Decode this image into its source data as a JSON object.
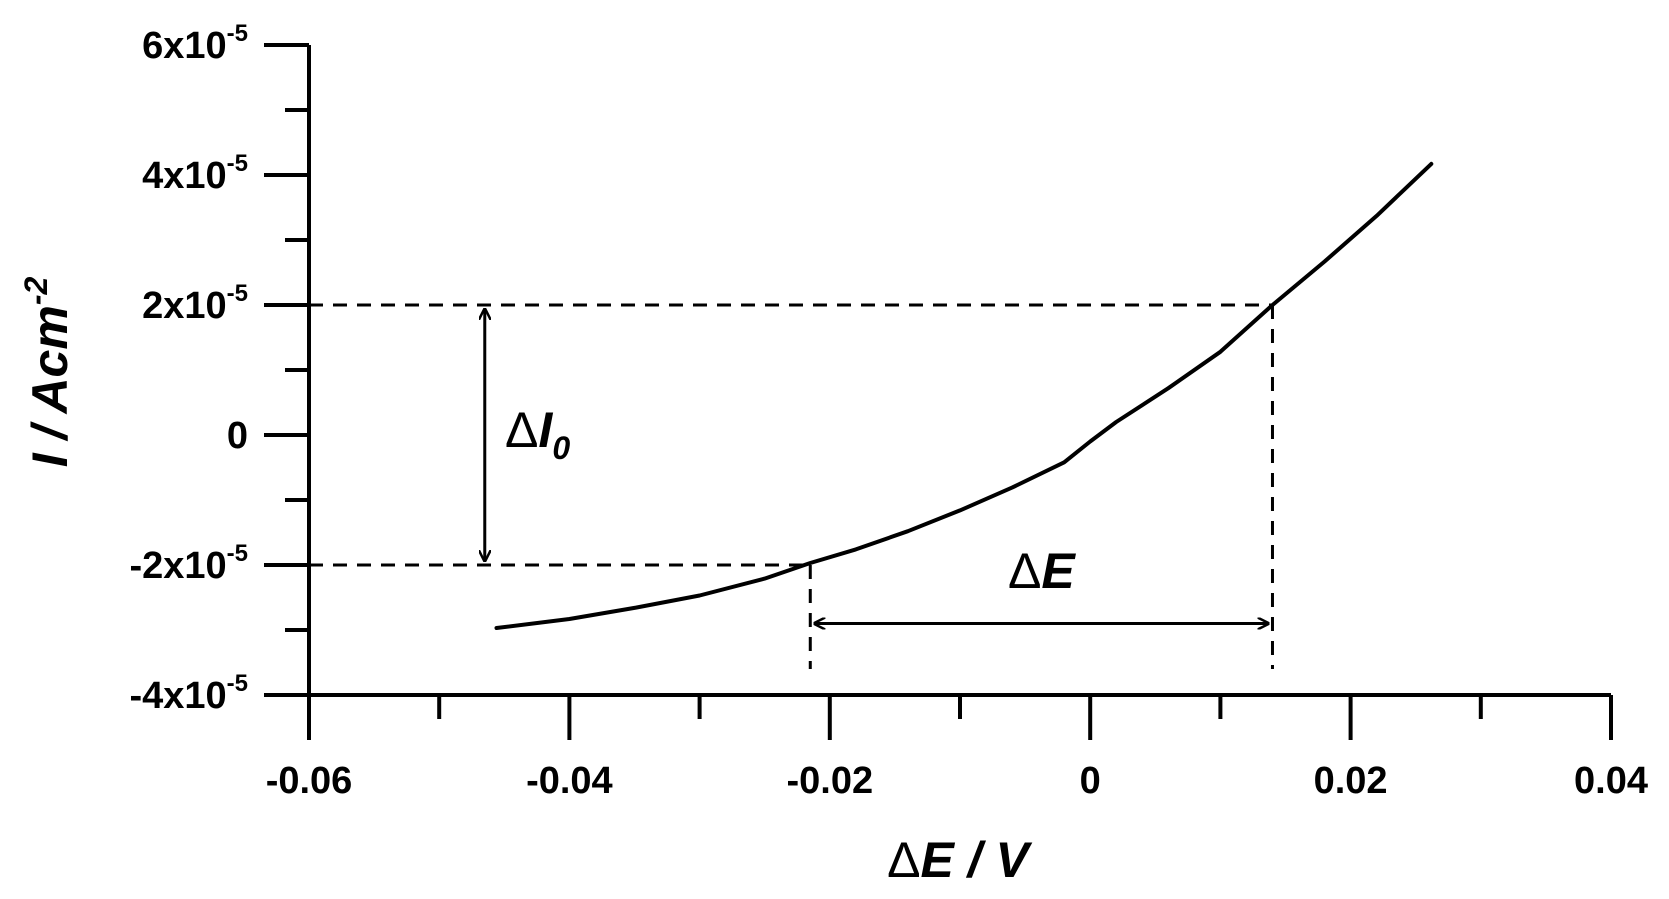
{
  "chart_data": {
    "type": "line",
    "xlabel": {
      "delta": "Δ",
      "var": "E",
      "rest": " / V"
    },
    "ylabel": {
      "var": "I",
      "mid": " / Acm",
      "sup": "-2"
    },
    "xlim": [
      -0.06,
      0.04
    ],
    "ylim": [
      -4e-05,
      6e-05
    ],
    "x_ticks": [
      {
        "value": -0.06,
        "label": "-0.06"
      },
      {
        "value": -0.04,
        "label": "-0.04"
      },
      {
        "value": -0.02,
        "label": "-0.02"
      },
      {
        "value": 0,
        "label": "0"
      },
      {
        "value": 0.02,
        "label": "0.02"
      },
      {
        "value": 0.04,
        "label": "0.04"
      }
    ],
    "x_minor_ticks": [
      -0.05,
      -0.03,
      -0.01,
      0.01,
      0.03
    ],
    "y_ticks": [
      {
        "value": 6e-05,
        "mant": "6x10",
        "exp": "-5"
      },
      {
        "value": 4e-05,
        "mant": "4x10",
        "exp": "-5"
      },
      {
        "value": 2e-05,
        "mant": "2x10",
        "exp": "-5"
      },
      {
        "value": 0,
        "mant": "0",
        "exp": ""
      },
      {
        "value": -2e-05,
        "mant": "-2x10",
        "exp": "-5"
      },
      {
        "value": -4e-05,
        "mant": "-4x10",
        "exp": "-5"
      }
    ],
    "y_minor_ticks": [
      5e-05,
      3e-05,
      1e-05,
      -1e-05,
      -3e-05
    ],
    "series": [
      {
        "color": "#000000",
        "points": [
          [
            -0.0456,
            -2.97e-05
          ],
          [
            -0.04,
            -2.83e-05
          ],
          [
            -0.035,
            -2.66e-05
          ],
          [
            -0.03,
            -2.47e-05
          ],
          [
            -0.025,
            -2.21e-05
          ],
          [
            -0.0215,
            -1.97e-05
          ],
          [
            -0.018,
            -1.76e-05
          ],
          [
            -0.014,
            -1.48e-05
          ],
          [
            -0.01,
            -1.16e-05
          ],
          [
            -0.006,
            -8.1e-06
          ],
          [
            -0.002,
            -4.2e-06
          ],
          [
            0.0,
            -1e-06
          ],
          [
            0.002,
            2e-06
          ],
          [
            0.006,
            7.2e-06
          ],
          [
            0.01,
            1.28e-05
          ],
          [
            0.014,
            2e-05
          ],
          [
            0.018,
            2.67e-05
          ],
          [
            0.022,
            3.37e-05
          ],
          [
            0.0262,
            4.17e-05
          ]
        ]
      }
    ],
    "annotations": {
      "delta_i0": {
        "delta": "Δ",
        "var": "I",
        "sub": "0",
        "x": -0.0465,
        "y_from": -2e-05,
        "y_to": 2e-05
      },
      "delta_e": {
        "delta": "Δ",
        "var": "E",
        "x_from": -0.0215,
        "x_to": 0.014,
        "y": -2.9e-05
      },
      "guides": [
        {
          "from": [
            -0.06,
            2e-05
          ],
          "to": [
            0.014,
            2e-05
          ]
        },
        {
          "from": [
            -0.06,
            -2e-05
          ],
          "to": [
            -0.0215,
            -2e-05
          ]
        },
        {
          "from": [
            0.014,
            2e-05
          ],
          "to": [
            0.014,
            -3.6e-05
          ]
        },
        {
          "from": [
            -0.0215,
            -2e-05
          ],
          "to": [
            -0.0215,
            -3.6e-05
          ]
        }
      ]
    }
  }
}
